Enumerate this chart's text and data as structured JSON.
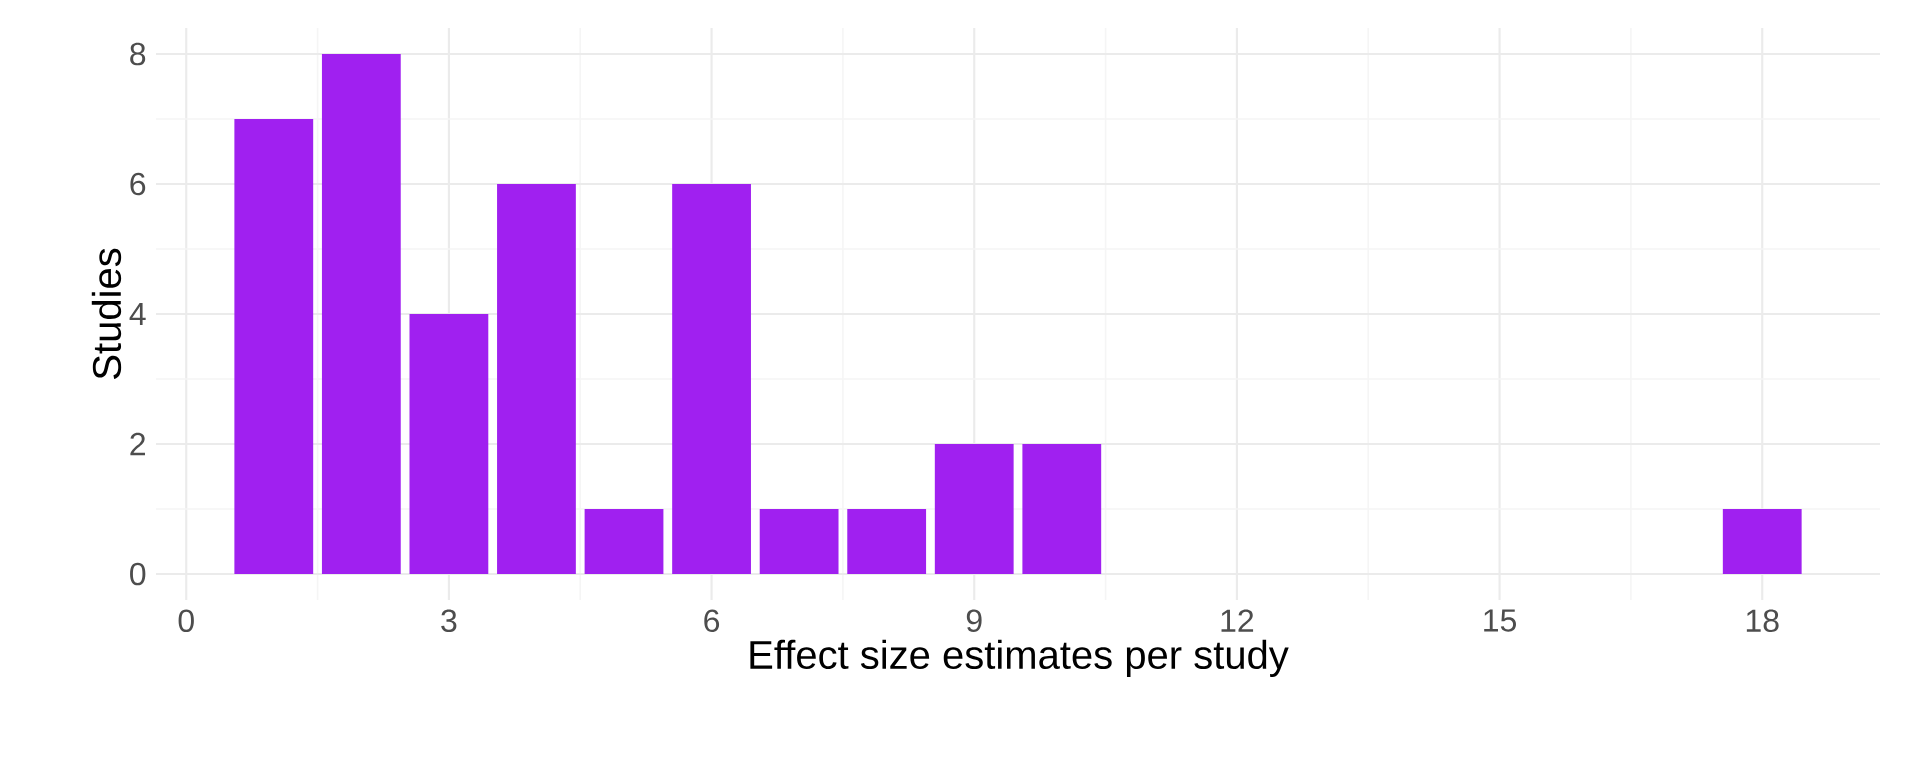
{
  "chart_data": {
    "type": "bar",
    "xlabel": "Effect size estimates per study",
    "ylabel": "Studies",
    "x": [
      1,
      2,
      3,
      4,
      5,
      6,
      7,
      8,
      9,
      10,
      18
    ],
    "values": [
      7,
      8,
      4,
      6,
      1,
      6,
      1,
      1,
      2,
      2,
      1
    ],
    "color": "#a020f0",
    "xlim": [
      -0.345,
      19.345
    ],
    "ylim": [
      -0.4,
      8.4
    ],
    "xticks": [
      0,
      3,
      6,
      9,
      12,
      15,
      18
    ],
    "yticks": [
      0,
      2,
      4,
      6,
      8
    ],
    "grid": true
  }
}
